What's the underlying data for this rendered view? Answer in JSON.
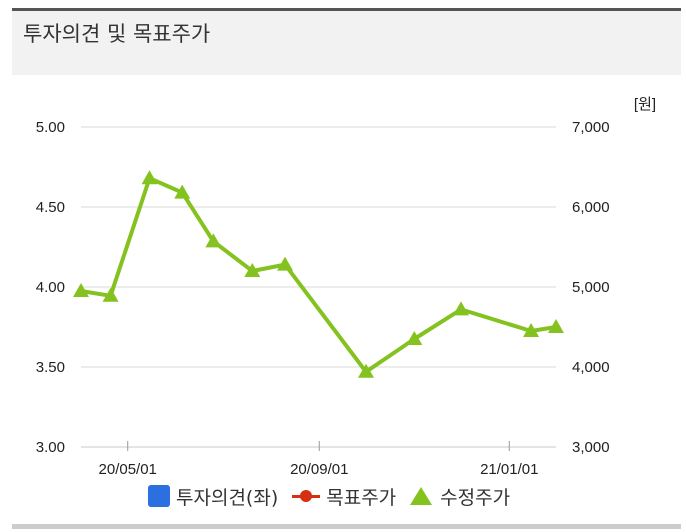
{
  "panel": {
    "title": "투자의견 및 목표주가"
  },
  "chart_data": {
    "type": "line",
    "unit_label": "[원]",
    "left_axis": {
      "ticks": [
        "5.00",
        "4.50",
        "4.00",
        "3.50",
        "3.00"
      ],
      "range": [
        3.0,
        5.0
      ]
    },
    "right_axis": {
      "ticks": [
        "7,000",
        "6,000",
        "5,000",
        "4,000",
        "3,000"
      ],
      "range": [
        3000,
        7000
      ]
    },
    "x_ticks": [
      "20/05/01",
      "20/09/01",
      "21/01/01"
    ],
    "x_tick_dates": [
      "2020-05-01",
      "2020-09-01",
      "2021-01-01"
    ],
    "x_range": [
      "2020-04-01",
      "2021-01-31"
    ],
    "grid": true,
    "legend_position": "bottom",
    "series": [
      {
        "name": "투자의견(좌)",
        "axis": "left",
        "color": "#2b6fe0",
        "marker": "square",
        "points": []
      },
      {
        "name": "목표주가",
        "axis": "right",
        "color": "#d62f12",
        "marker": "circle",
        "points": []
      },
      {
        "name": "수정주가",
        "axis": "right",
        "color": "#84c21f",
        "marker": "triangle",
        "points": [
          {
            "x": "2020-04-01",
            "y": 4950
          },
          {
            "x": "2020-04-20",
            "y": 4890
          },
          {
            "x": "2020-05-15",
            "y": 6360
          },
          {
            "x": "2020-06-05",
            "y": 6180
          },
          {
            "x": "2020-06-25",
            "y": 5570
          },
          {
            "x": "2020-07-20",
            "y": 5200
          },
          {
            "x": "2020-08-10",
            "y": 5280
          },
          {
            "x": "2020-10-01",
            "y": 3940
          },
          {
            "x": "2020-11-01",
            "y": 4350
          },
          {
            "x": "2020-12-01",
            "y": 4720
          },
          {
            "x": "2021-01-15",
            "y": 4450
          },
          {
            "x": "2021-01-31",
            "y": 4500
          }
        ]
      }
    ]
  }
}
